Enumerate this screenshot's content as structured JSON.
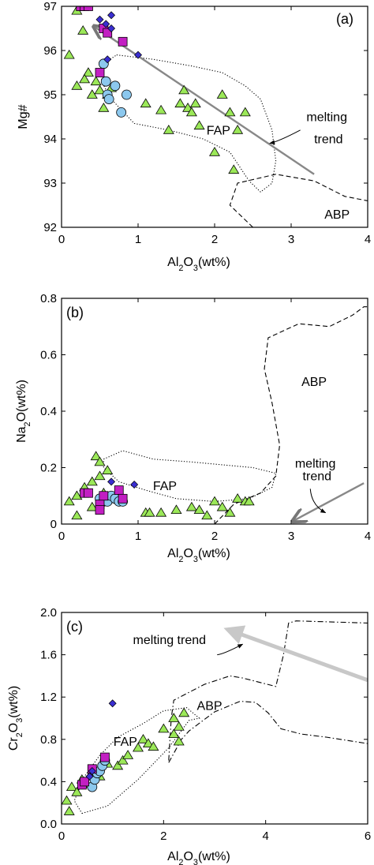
{
  "chart_data": [
    {
      "type": "scatter",
      "panel_label": "(a)",
      "xlabel": [
        "Al",
        "2",
        "O",
        "3",
        "(wt%)"
      ],
      "ylabel": "Mg#",
      "xlim": [
        0,
        4
      ],
      "ylim": [
        92,
        97
      ],
      "xticks": [
        "0",
        "1",
        "2",
        "3",
        "4"
      ],
      "yticks": [
        "92",
        "93",
        "94",
        "95",
        "96",
        "97"
      ],
      "annotations": {
        "fap": {
          "text": "FAP",
          "x": 2.05,
          "y": 94.1
        },
        "abp": {
          "text": "ABP",
          "x": 3.6,
          "y": 92.2
        },
        "trend_line1": {
          "text": "melting",
          "x": 3.2,
          "y": 94.4
        },
        "trend_line2": {
          "text": "trend",
          "x": 3.3,
          "y": 93.9
        }
      },
      "regions": {
        "FAP": [
          [
            0.72,
            95.9
          ],
          [
            1.2,
            95.8
          ],
          [
            1.7,
            95.65
          ],
          [
            2.1,
            95.5
          ],
          [
            2.4,
            95.2
          ],
          [
            2.6,
            94.9
          ],
          [
            2.75,
            94.2
          ],
          [
            2.8,
            93.5
          ],
          [
            2.75,
            93.0
          ],
          [
            2.6,
            92.8
          ],
          [
            2.45,
            93.05
          ],
          [
            2.2,
            93.7
          ],
          [
            1.85,
            94.0
          ],
          [
            1.4,
            94.2
          ],
          [
            0.95,
            94.35
          ],
          [
            0.65,
            94.9
          ],
          [
            0.52,
            95.3
          ],
          [
            0.55,
            95.7
          ],
          [
            0.72,
            95.9
          ]
        ],
        "ABP": [
          [
            2.5,
            92.0
          ],
          [
            2.2,
            92.5
          ],
          [
            2.3,
            93.0
          ],
          [
            2.8,
            93.2
          ],
          [
            3.3,
            93.05
          ],
          [
            3.7,
            92.7
          ],
          [
            4.0,
            92.6
          ]
        ]
      },
      "arrow": {
        "from": [
          3.3,
          93.2
        ],
        "to": [
          0.42,
          96.55
        ]
      },
      "arrow_head_style": "open",
      "curved_leader": {
        "from": [
          3.12,
          94.2
        ],
        "to": [
          2.72,
          93.9
        ]
      },
      "series": [
        {
          "marker": "triangle",
          "color": "#9be858",
          "points": [
            [
              0.1,
              95.9
            ],
            [
              0.2,
              95.2
            ],
            [
              0.28,
              96.45
            ],
            [
              0.35,
              95.5
            ],
            [
              0.4,
              95.0
            ],
            [
              0.45,
              95.3
            ],
            [
              0.5,
              95.1
            ],
            [
              0.55,
              94.7
            ],
            [
              0.6,
              95.0
            ],
            [
              0.65,
              95.15
            ],
            [
              1.1,
              94.8
            ],
            [
              1.3,
              94.65
            ],
            [
              1.4,
              94.2
            ],
            [
              1.55,
              94.8
            ],
            [
              1.6,
              95.1
            ],
            [
              1.65,
              94.7
            ],
            [
              1.7,
              94.6
            ],
            [
              1.75,
              94.8
            ],
            [
              1.8,
              94.3
            ],
            [
              2.0,
              93.7
            ],
            [
              2.1,
              95.0
            ],
            [
              2.2,
              94.6
            ],
            [
              2.25,
              93.3
            ],
            [
              2.3,
              94.2
            ],
            [
              2.4,
              94.6
            ],
            [
              0.2,
              96.9
            ],
            [
              0.3,
              95.35
            ]
          ]
        },
        {
          "marker": "circle",
          "color": "#8cc8ee",
          "points": [
            [
              0.55,
              95.7
            ],
            [
              0.58,
              95.3
            ],
            [
              0.6,
              95.0
            ],
            [
              0.62,
              94.9
            ],
            [
              0.7,
              95.2
            ],
            [
              0.78,
              94.6
            ],
            [
              0.85,
              95.0
            ]
          ]
        },
        {
          "marker": "square",
          "color": "#c21fc2",
          "points": [
            [
              0.25,
              97.0
            ],
            [
              0.3,
              97.0
            ],
            [
              0.35,
              97.0
            ],
            [
              0.55,
              96.5
            ],
            [
              0.6,
              96.4
            ],
            [
              0.8,
              96.2
            ],
            [
              0.5,
              95.5
            ]
          ]
        },
        {
          "marker": "diamond",
          "color": "#3a2ed0",
          "points": [
            [
              0.5,
              96.7
            ],
            [
              0.58,
              96.6
            ],
            [
              0.65,
              96.8
            ],
            [
              0.65,
              96.5
            ],
            [
              0.6,
              95.8
            ],
            [
              1.0,
              95.9
            ]
          ]
        }
      ]
    },
    {
      "type": "scatter",
      "panel_label": "(b)",
      "xlabel": [
        "Al",
        "2",
        "O",
        "3",
        "(wt%)"
      ],
      "ylabel": [
        "Na",
        "2",
        "O(wt%)"
      ],
      "xlim": [
        0,
        4
      ],
      "ylim": [
        0,
        0.8
      ],
      "xticks": [
        "0",
        "1",
        "2",
        "3",
        "4"
      ],
      "yticks": [
        "0",
        "0.2",
        "0.4",
        "0.6",
        "0.8"
      ],
      "annotations": {
        "fap": {
          "text": "FAP",
          "x": 1.35,
          "y": 0.12
        },
        "abp": {
          "text": "ABP",
          "x": 3.3,
          "y": 0.49
        },
        "trend_line1": {
          "text": "melting",
          "x": 3.05,
          "y": 0.2
        },
        "trend_line2": {
          "text": "trend",
          "x": 3.15,
          "y": 0.155
        }
      },
      "regions": {
        "FAP": [
          [
            0.55,
            0.23
          ],
          [
            0.8,
            0.26
          ],
          [
            1.2,
            0.23
          ],
          [
            1.7,
            0.22
          ],
          [
            2.1,
            0.21
          ],
          [
            2.5,
            0.2
          ],
          [
            2.8,
            0.18
          ],
          [
            2.75,
            0.13
          ],
          [
            2.45,
            0.09
          ],
          [
            2.0,
            0.08
          ],
          [
            1.5,
            0.09
          ],
          [
            1.1,
            0.12
          ],
          [
            0.75,
            0.15
          ],
          [
            0.55,
            0.2
          ],
          [
            0.55,
            0.23
          ]
        ],
        "ABP": [
          [
            2.0,
            0.0
          ],
          [
            2.25,
            0.07
          ],
          [
            2.6,
            0.11
          ],
          [
            2.8,
            0.17
          ],
          [
            2.85,
            0.28
          ],
          [
            2.75,
            0.43
          ],
          [
            2.65,
            0.55
          ],
          [
            2.7,
            0.66
          ],
          [
            3.1,
            0.71
          ],
          [
            3.5,
            0.7
          ],
          [
            3.8,
            0.74
          ],
          [
            3.95,
            0.77
          ],
          [
            4.0,
            0.77
          ]
        ]
      },
      "arrow": {
        "from": [
          3.95,
          0.145
        ],
        "to": [
          3.02,
          0.01
        ]
      },
      "arrow_head_style": "open",
      "curved_leader": {
        "from": [
          3.25,
          0.125
        ],
        "to": [
          3.45,
          0.04
        ]
      },
      "series": [
        {
          "marker": "triangle",
          "color": "#9be858",
          "points": [
            [
              0.1,
              0.08
            ],
            [
              0.2,
              0.1
            ],
            [
              0.2,
              0.03
            ],
            [
              0.3,
              0.13
            ],
            [
              0.4,
              0.06
            ],
            [
              0.4,
              0.15
            ],
            [
              0.45,
              0.24
            ],
            [
              0.5,
              0.22
            ],
            [
              0.5,
              0.17
            ],
            [
              0.55,
              0.11
            ],
            [
              0.6,
              0.19
            ],
            [
              1.1,
              0.04
            ],
            [
              1.3,
              0.04
            ],
            [
              1.5,
              0.05
            ],
            [
              1.7,
              0.06
            ],
            [
              1.8,
              0.05
            ],
            [
              1.9,
              0.03
            ],
            [
              2.0,
              0.08
            ],
            [
              2.1,
              0.06
            ],
            [
              2.2,
              0.04
            ],
            [
              2.3,
              0.09
            ],
            [
              2.4,
              0.08
            ],
            [
              2.45,
              0.08
            ],
            [
              1.15,
              0.04
            ]
          ]
        },
        {
          "marker": "circle",
          "color": "#8cc8ee",
          "points": [
            [
              0.5,
              0.09
            ],
            [
              0.55,
              0.08
            ],
            [
              0.6,
              0.08
            ],
            [
              0.65,
              0.1
            ],
            [
              0.7,
              0.09
            ],
            [
              0.75,
              0.08
            ],
            [
              0.8,
              0.08
            ]
          ]
        },
        {
          "marker": "square",
          "color": "#c21fc2",
          "points": [
            [
              0.3,
              0.11
            ],
            [
              0.35,
              0.11
            ],
            [
              0.5,
              0.07
            ],
            [
              0.55,
              0.1
            ],
            [
              0.75,
              0.12
            ],
            [
              0.5,
              0.05
            ],
            [
              0.8,
              0.09
            ]
          ]
        },
        {
          "marker": "diamond",
          "color": "#3a2ed0",
          "points": [
            [
              0.65,
              0.15
            ],
            [
              0.95,
              0.14
            ]
          ]
        }
      ]
    },
    {
      "type": "scatter",
      "panel_label": "(c)",
      "xlabel": [
        "Al",
        "2",
        "O",
        "3",
        "(wt%)"
      ],
      "ylabel": [
        "Cr",
        "2",
        "O",
        "3",
        "(wt%)"
      ],
      "xlim": [
        0,
        6
      ],
      "ylim": [
        0,
        2.0
      ],
      "xticks": [
        "0",
        "2",
        "4",
        "6"
      ],
      "yticks": [
        "0.0",
        "0.4",
        "0.8",
        "1.2",
        "1.6",
        "2.0"
      ],
      "annotations": {
        "fap": {
          "text": "FAP",
          "x": 1.25,
          "y": 0.74
        },
        "abp": {
          "text": "ABP",
          "x": 2.9,
          "y": 1.08
        },
        "trend_line1": {
          "text": "melting trend",
          "x": 1.4,
          "y": 1.7
        }
      },
      "regions": {
        "FAP": [
          [
            0.4,
            0.1
          ],
          [
            0.9,
            0.17
          ],
          [
            1.5,
            0.42
          ],
          [
            2.1,
            0.72
          ],
          [
            2.5,
            0.98
          ],
          [
            2.7,
            1.0
          ],
          [
            2.45,
            1.1
          ],
          [
            2.0,
            1.07
          ],
          [
            1.6,
            0.95
          ],
          [
            1.1,
            0.82
          ],
          [
            0.75,
            0.65
          ],
          [
            0.45,
            0.45
          ],
          [
            0.25,
            0.22
          ],
          [
            0.4,
            0.1
          ]
        ],
        "ABP_outer": [
          [
            2.1,
            0.58
          ],
          [
            2.35,
            0.8
          ],
          [
            2.5,
            0.88
          ],
          [
            3.0,
            1.06
          ],
          [
            3.5,
            1.16
          ],
          [
            3.8,
            1.15
          ],
          [
            4.05,
            1.05
          ],
          [
            4.3,
            0.9
          ],
          [
            4.7,
            0.85
          ],
          [
            5.2,
            0.82
          ],
          [
            6.0,
            0.76
          ]
        ],
        "ABP_inner": [
          [
            2.1,
            0.6
          ],
          [
            2.15,
            1.0
          ],
          [
            2.2,
            1.17
          ],
          [
            2.8,
            1.32
          ],
          [
            3.3,
            1.4
          ],
          [
            3.55,
            1.38
          ],
          [
            4.2,
            1.3
          ],
          [
            4.35,
            1.6
          ],
          [
            4.45,
            1.9
          ],
          [
            4.6,
            1.92
          ],
          [
            6.0,
            1.9
          ]
        ]
      },
      "arrow": {
        "from": [
          6.0,
          1.36
        ],
        "to": [
          3.25,
          1.84
        ]
      },
      "arrow_head_style": "filled",
      "curved_leader": {
        "from": [
          3.05,
          1.6
        ],
        "to": [
          3.55,
          1.7
        ]
      },
      "series": [
        {
          "marker": "triangle",
          "color": "#9be858",
          "points": [
            [
              0.1,
              0.22
            ],
            [
              0.2,
              0.35
            ],
            [
              0.3,
              0.3
            ],
            [
              0.4,
              0.42
            ],
            [
              0.5,
              0.38
            ],
            [
              0.55,
              0.45
            ],
            [
              0.6,
              0.48
            ],
            [
              0.75,
              0.45
            ],
            [
              0.9,
              0.57
            ],
            [
              1.1,
              0.55
            ],
            [
              1.2,
              0.6
            ],
            [
              1.3,
              0.65
            ],
            [
              1.5,
              0.72
            ],
            [
              1.6,
              0.8
            ],
            [
              1.7,
              0.76
            ],
            [
              1.8,
              0.73
            ],
            [
              2.0,
              0.9
            ],
            [
              2.2,
              1.0
            ],
            [
              2.3,
              0.92
            ],
            [
              2.4,
              1.05
            ],
            [
              2.2,
              0.85
            ],
            [
              2.3,
              0.78
            ],
            [
              0.15,
              0.12
            ]
          ]
        },
        {
          "marker": "circle",
          "color": "#8cc8ee",
          "points": [
            [
              0.6,
              0.35
            ],
            [
              0.65,
              0.42
            ],
            [
              0.7,
              0.48
            ],
            [
              0.75,
              0.5
            ],
            [
              0.8,
              0.55
            ],
            [
              0.85,
              0.6
            ]
          ]
        },
        {
          "marker": "square",
          "color": "#c21fc2",
          "points": [
            [
              0.4,
              0.37
            ],
            [
              0.45,
              0.4
            ],
            [
              0.6,
              0.52
            ],
            [
              0.85,
              0.63
            ]
          ]
        },
        {
          "marker": "diamond",
          "color": "#3a2ed0",
          "points": [
            [
              0.55,
              0.45
            ],
            [
              0.6,
              0.5
            ],
            [
              1.0,
              1.14
            ]
          ]
        }
      ]
    }
  ]
}
